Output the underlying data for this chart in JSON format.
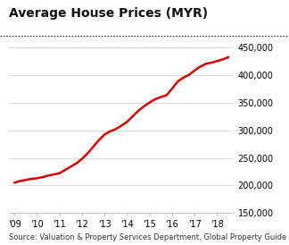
{
  "title": "Average House Prices (MYR)",
  "source_text": "Source: Valuation & Property Services Department, Global Property Guide",
  "x_values": [
    2009.0,
    2009.25,
    2009.5,
    2009.75,
    2010.0,
    2010.25,
    2010.5,
    2010.75,
    2011.0,
    2011.25,
    2011.5,
    2011.75,
    2012.0,
    2012.25,
    2012.5,
    2012.75,
    2013.0,
    2013.25,
    2013.5,
    2013.75,
    2014.0,
    2014.25,
    2014.5,
    2014.75,
    2015.0,
    2015.25,
    2015.5,
    2015.75,
    2016.0,
    2016.25,
    2016.5,
    2016.75,
    2017.0,
    2017.25,
    2017.5,
    2017.75,
    2018.0,
    2018.25,
    2018.5
  ],
  "y_values": [
    205000,
    208000,
    210000,
    212000,
    213000,
    215000,
    218000,
    220000,
    222000,
    228000,
    234000,
    240000,
    248000,
    258000,
    270000,
    282000,
    292000,
    298000,
    302000,
    308000,
    315000,
    325000,
    335000,
    343000,
    350000,
    356000,
    360000,
    363000,
    375000,
    388000,
    395000,
    400000,
    408000,
    415000,
    420000,
    422000,
    425000,
    428000,
    432000
  ],
  "line_color": "#dd0000",
  "line_width": 1.8,
  "ylim": [
    150000,
    460000
  ],
  "yticks": [
    150000,
    200000,
    250000,
    300000,
    350000,
    400000,
    450000
  ],
  "xtick_positions": [
    2009,
    2010,
    2011,
    2012,
    2013,
    2014,
    2015,
    2016,
    2017,
    2018
  ],
  "xtick_labels": [
    "'09",
    "'10",
    "'11",
    "'12",
    "'13",
    "'14",
    "'15",
    "'16",
    "'17",
    "'18"
  ],
  "bg_color": "#ffffff",
  "plot_bg_color": "#ffffff",
  "grid_color": "#cccccc",
  "title_fontsize": 10,
  "tick_fontsize": 7,
  "source_fontsize": 6
}
